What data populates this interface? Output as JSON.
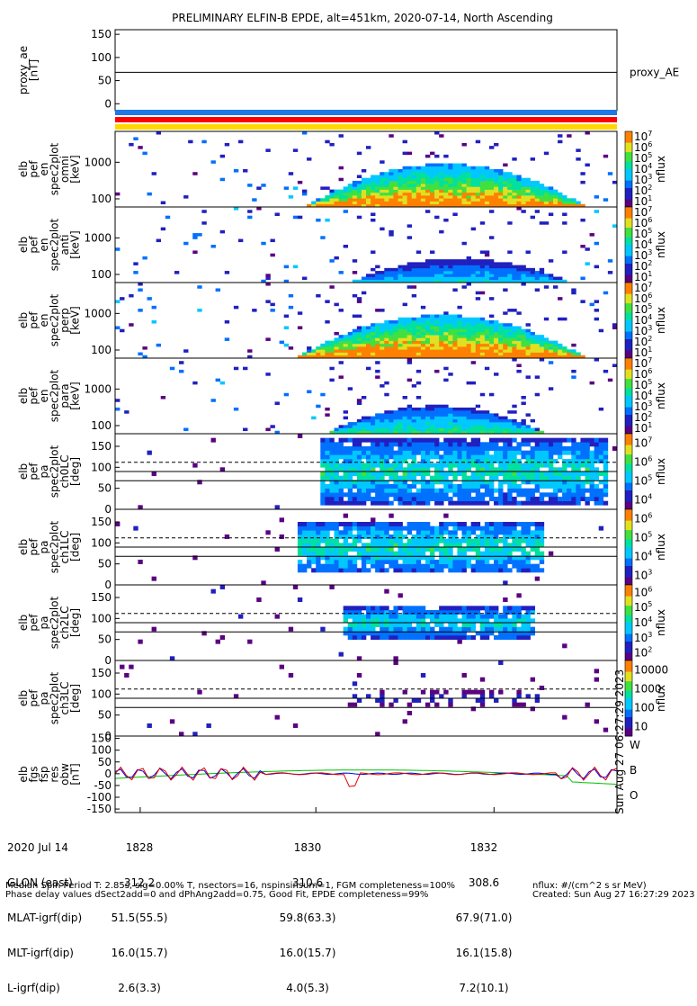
{
  "title": "PRELIMINARY ELFIN-B EPDE, alt=451km, 2020-07-14, North Ascending",
  "chart_data": [
    {
      "id": "proxy_ae",
      "type": "line",
      "ylabel": [
        "proxy_ae",
        "[nT]"
      ],
      "yticks": [
        "150",
        "100",
        "50",
        "0"
      ],
      "ylim": [
        -15,
        160
      ],
      "legend": "proxy_AE",
      "x": [
        0,
        1
      ],
      "values": [
        68,
        68
      ]
    },
    {
      "id": "status_bars",
      "type": "bar",
      "colors": [
        "#1e78e6",
        "#ff0000",
        "#ffd700"
      ]
    },
    {
      "id": "spec_omni",
      "type": "heatmap",
      "ylabel": [
        "elb",
        "pef",
        "en",
        "spec2plot",
        "omni",
        "[keV]"
      ],
      "yticks": [
        "1000",
        "100"
      ],
      "ylim": [
        60,
        7000
      ],
      "yscale": "log",
      "zlabel": "nflux",
      "zticks_base": "10",
      "zticks_exp": [
        "1",
        "2",
        "3",
        "4",
        "5",
        "6",
        "7"
      ]
    },
    {
      "id": "spec_anti",
      "type": "heatmap",
      "ylabel": [
        "elb",
        "pef",
        "en",
        "spec2plot",
        "anti",
        "[keV]"
      ],
      "yticks": [
        "1000",
        "100"
      ],
      "ylim": [
        60,
        7000
      ],
      "yscale": "log",
      "zlabel": "nflux",
      "zticks_base": "10",
      "zticks_exp": [
        "1",
        "2",
        "3",
        "4",
        "5",
        "6",
        "7"
      ]
    },
    {
      "id": "spec_perp",
      "type": "heatmap",
      "ylabel": [
        "elb",
        "pef",
        "en",
        "spec2plot",
        "perp",
        "[keV]"
      ],
      "yticks": [
        "1000",
        "100"
      ],
      "ylim": [
        60,
        7000
      ],
      "yscale": "log",
      "zlabel": "nflux",
      "zticks_base": "10",
      "zticks_exp": [
        "1",
        "2",
        "3",
        "4",
        "5",
        "6",
        "7"
      ]
    },
    {
      "id": "spec_para",
      "type": "heatmap",
      "ylabel": [
        "elb",
        "pef",
        "en",
        "spec2plot",
        "para",
        "[keV]"
      ],
      "yticks": [
        "1000",
        "100"
      ],
      "ylim": [
        60,
        7000
      ],
      "yscale": "log",
      "zlabel": "nflux",
      "zticks_base": "10",
      "zticks_exp": [
        "1",
        "2",
        "3",
        "4",
        "5",
        "6",
        "7"
      ]
    },
    {
      "id": "pa_ch0",
      "type": "heatmap",
      "ylabel": [
        "elb",
        "pef",
        "pa",
        "spec2plot",
        "ch0LC",
        "[deg]"
      ],
      "yticks": [
        "150",
        "100",
        "50",
        "0"
      ],
      "ylim": [
        0,
        180
      ],
      "zlabel": "nflux",
      "zticks_base": "10",
      "zticks_exp": [
        "4",
        "5",
        "6",
        "7"
      ]
    },
    {
      "id": "pa_ch1",
      "type": "heatmap",
      "ylabel": [
        "elb",
        "pef",
        "pa",
        "spec2plot",
        "ch1LC",
        "[deg]"
      ],
      "yticks": [
        "150",
        "100",
        "50",
        "0"
      ],
      "ylim": [
        0,
        180
      ],
      "zlabel": "nflux",
      "zticks_base": "10",
      "zticks_exp": [
        "3",
        "4",
        "5",
        "6"
      ]
    },
    {
      "id": "pa_ch2",
      "type": "heatmap",
      "ylabel": [
        "elb",
        "pef",
        "pa",
        "spec2plot",
        "ch2LC",
        "[deg]"
      ],
      "yticks": [
        "150",
        "100",
        "50",
        "0"
      ],
      "ylim": [
        0,
        180
      ],
      "zlabel": "nflux",
      "zticks_base": "10",
      "zticks_exp": [
        "2",
        "3",
        "4",
        "5",
        "6"
      ]
    },
    {
      "id": "pa_ch3",
      "type": "heatmap",
      "ylabel": [
        "elb",
        "pef",
        "pa",
        "spec2plot",
        "ch3LC",
        "[deg]"
      ],
      "yticks": [
        "150",
        "100",
        "50",
        "0"
      ],
      "ylim": [
        0,
        180
      ],
      "zlabel": "nflux",
      "zticks_plain": [
        "10000",
        "1000",
        "100",
        "10"
      ]
    },
    {
      "id": "fgs_res",
      "type": "line",
      "ylabel": [
        "elb",
        "fgs",
        "fsp",
        "res",
        "obw",
        "[nT]"
      ],
      "yticks": [
        "150",
        "100",
        "50",
        "0",
        "-50",
        "-100",
        "-150"
      ],
      "ylim": [
        -165,
        160
      ],
      "series": [
        {
          "name": "W",
          "color": "#e00000"
        },
        {
          "name": "B",
          "color": "#00c000"
        },
        {
          "name": "O",
          "color": "#0000e0"
        }
      ]
    }
  ],
  "ephemeris": {
    "row_labels": [
      "2020 Jul 14",
      "GLON (east)",
      "MLAT-igrf(dip)",
      "MLT-igrf(dip)",
      "L-igrf(dip)"
    ],
    "columns": [
      {
        "time": "1828",
        "glon": "312.2",
        "mlat": "51.5(55.5)",
        "mlt": "16.0(15.7)",
        "l": "2.6(3.3)"
      },
      {
        "time": "1830",
        "glon": "310.6",
        "mlat": "59.8(63.3)",
        "mlt": "16.0(15.7)",
        "l": "4.0(5.3)"
      },
      {
        "time": "1832",
        "glon": "308.6",
        "mlat": "67.9(71.0)",
        "mlt": "16.1(15.8)",
        "l": "7.2(10.1)"
      }
    ]
  },
  "footer": {
    "line1": "Median Spin Period T: 2.85s, sig=0.00% T, nsectors=16, nspinsinsum=1, FGM completeness=100%",
    "line2": "Phase delay values dSect2add=0 and dPhAng2add=0.75, Good Fit, EPDE completeness=99%",
    "nflux_units": "nflux: #/(cm^2 s sr MeV)",
    "created": "Created: Sun Aug 27 16:27:29 2023",
    "vertical_stamp": "Sun Aug 27 06:27:29 2023"
  }
}
